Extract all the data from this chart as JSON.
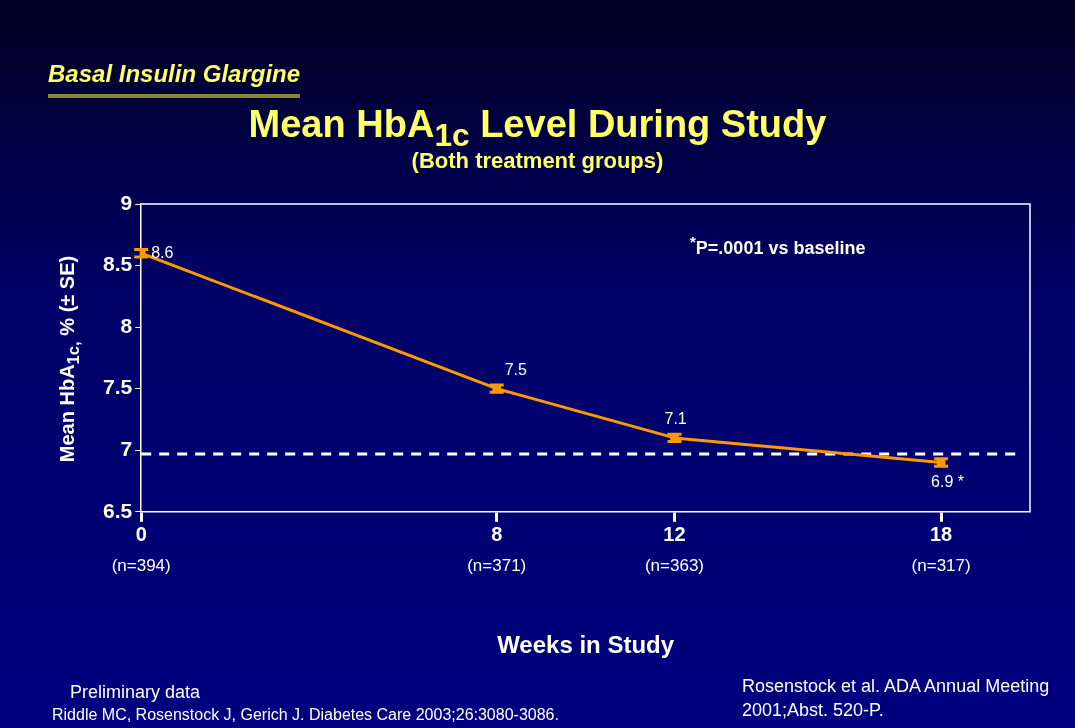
{
  "chart_data": {
    "type": "line",
    "title": "Mean HbA$_{1c}$ Level During Study",
    "subtitle": "(Both treatment groups)",
    "xlabel": "Weeks in Study",
    "ylabel": "Mean HbA$_{1c,}$ % (± SE)",
    "x": [
      0,
      8,
      12,
      18
    ],
    "series": [
      {
        "color": "#ff9900",
        "values": [
          8.6,
          7.5,
          7.1,
          6.9
        ],
        "errors": [
          0.03,
          0.03,
          0.03,
          0.03
        ],
        "value_labels": [
          "8.6",
          "7.5",
          "7.1",
          "6.9 *"
        ]
      }
    ],
    "xlim": [
      0,
      20
    ],
    "xticks": [
      0,
      8,
      12,
      18
    ],
    "ylim": [
      6.5,
      9
    ],
    "yticks": [
      6.5,
      7,
      7.5,
      8,
      8.5,
      9
    ],
    "ref_lines": [
      {
        "axis": "y",
        "value": 6.97,
        "color": "#ffffff",
        "line_style": "dashed"
      }
    ],
    "grid": false,
    "legend": false,
    "marker": "square",
    "line_style": "solid",
    "annotations": [
      "Basal Insulin Glargine",
      "$^{*}$P=.0001 vs baseline",
      "Preliminary data",
      "Rosenstock et al. ADA Annual Meeting 2001;Abst. 520-P.",
      "Riddle MC, Rosenstock J, Gerich J. Diabetes Care 2003;26:3080-3086.",
      "(n=394)",
      "(n=371)",
      "(n=363)",
      "(n=317)"
    ]
  }
}
